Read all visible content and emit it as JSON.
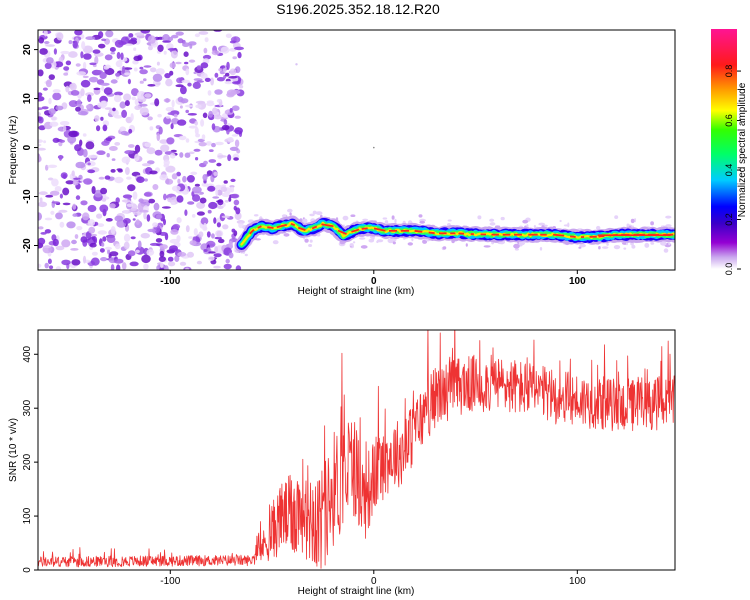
{
  "title": "S196.2025.352.18.12.R20",
  "chart_data": [
    {
      "type": "heatmap",
      "xlabel": "Height of straight line (km)",
      "ylabel": "Frequency (Hz)",
      "xlim": [
        -165,
        148
      ],
      "ylim": [
        -25,
        24
      ],
      "x_ticks": [
        -100,
        0,
        100
      ],
      "x_tick_labels": [
        "-100",
        "0",
        "100"
      ],
      "y_ticks": [
        20,
        10,
        0,
        -10,
        -20
      ],
      "y_tick_labels": [
        "20",
        "10",
        "0",
        "-10",
        "-20"
      ],
      "noise_region_x": [
        -165,
        -65
      ],
      "signal_start_x": -65,
      "signal_end_x": 148,
      "ridge": {
        "x": [
          -65,
          -60,
          -55,
          -50,
          -45,
          -40,
          -35,
          -30,
          -25,
          -20,
          -15,
          -10,
          -5,
          0,
          5,
          10,
          20,
          30,
          40,
          50,
          60,
          70,
          80,
          90,
          100,
          110,
          120,
          130,
          140,
          148
        ],
        "frequency": [
          -20,
          -17,
          -16,
          -16.5,
          -16,
          -15.5,
          -17,
          -16.5,
          -15.5,
          -16,
          -18,
          -17,
          -16.5,
          -16.5,
          -17,
          -17,
          -17,
          -17.5,
          -17.5,
          -17.7,
          -17.8,
          -17.8,
          -17.8,
          -17.8,
          -18.3,
          -18.2,
          -17.8,
          -17.8,
          -17.8,
          -17.8
        ]
      },
      "colorbar": {
        "label": "Normalized spectral amplitude",
        "range": [
          0,
          0.97
        ],
        "ticks": [
          0.0,
          0.2,
          0.4,
          0.6,
          0.8
        ],
        "tick_labels": [
          "0.0",
          "0.2",
          "0.4",
          "0.6",
          "0.8"
        ],
        "colors": [
          "#ffffff",
          "#9400d3",
          "#4b0082",
          "#0000ff",
          "#00ffff",
          "#00ff00",
          "#ffff00",
          "#ff7f00",
          "#ff0000",
          "#ff1493"
        ]
      }
    },
    {
      "type": "line",
      "xlabel": "Height of straight line (km)",
      "ylabel": "SNR (10 * v/v)",
      "xlim": [
        -165,
        148
      ],
      "ylim": [
        0,
        445
      ],
      "x_ticks": [
        -100,
        0,
        100
      ],
      "x_tick_labels": [
        "-100",
        "0",
        "100"
      ],
      "y_ticks": [
        0,
        100,
        200,
        300,
        400
      ],
      "y_tick_labels": [
        "0",
        "100",
        "200",
        "300",
        "400"
      ],
      "color": "#ee3333",
      "trend": {
        "x": [
          -165,
          -60,
          -55,
          -50,
          -45,
          -40,
          -35,
          -30,
          -25,
          -20,
          -15,
          -10,
          -5,
          0,
          5,
          10,
          15,
          20,
          25,
          30,
          40,
          50,
          60,
          70,
          80,
          90,
          100,
          110,
          120,
          130,
          140,
          148
        ],
        "snr": [
          15,
          18,
          40,
          70,
          100,
          100,
          120,
          100,
          90,
          150,
          170,
          200,
          130,
          170,
          200,
          215,
          220,
          260,
          290,
          320,
          340,
          345,
          345,
          340,
          330,
          320,
          315,
          310,
          305,
          305,
          310,
          310
        ]
      },
      "noise_amplitude": {
        "x": [
          -165,
          -60,
          -55,
          -50,
          -35,
          -20,
          -10,
          0,
          20,
          40,
          100,
          148
        ],
        "amp": [
          10,
          10,
          25,
          55,
          90,
          110,
          100,
          70,
          60,
          55,
          50,
          50
        ]
      }
    }
  ]
}
